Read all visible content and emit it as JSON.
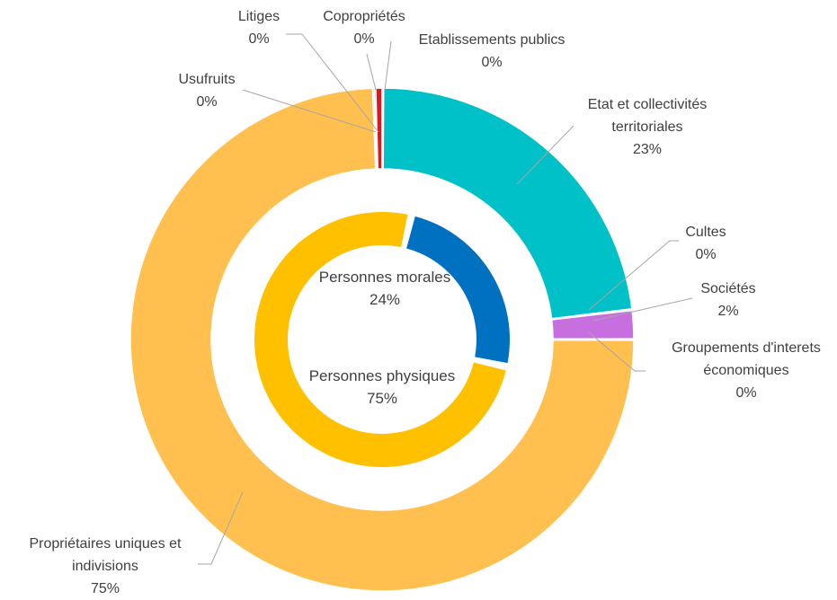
{
  "chart_data": {
    "type": "donut",
    "outer": {
      "categories": [
        "Etablissements publics",
        "Etat et collectivités territoriales",
        "Cultes",
        "Sociétés",
        "Groupements d'interets économiques",
        "Propriétaires uniques et indivisions",
        "Usufruits",
        "Litiges",
        "Copropriétés"
      ],
      "values": [
        0.1,
        23,
        0.1,
        1.8,
        0.1,
        74.5,
        0.1,
        0.1,
        0.4
      ],
      "value_labels": [
        "0%",
        "23%",
        "0%",
        "2%",
        "0%",
        "75%",
        "0%",
        "0%",
        "0%"
      ],
      "colors": [
        "#2e75b6",
        "#00c0c8",
        "#a5a5a5",
        "#c86fe0",
        "#70ad47",
        "#ffc050",
        "#5b9bd5",
        "#264478",
        "#e0161e"
      ]
    },
    "inner": {
      "categories": [
        "Personnes morales",
        "Personnes physiques"
      ],
      "values": [
        24,
        75
      ],
      "value_labels": [
        "24%",
        "75%"
      ],
      "colors": [
        "#0070c0",
        "#ffc000"
      ]
    }
  }
}
